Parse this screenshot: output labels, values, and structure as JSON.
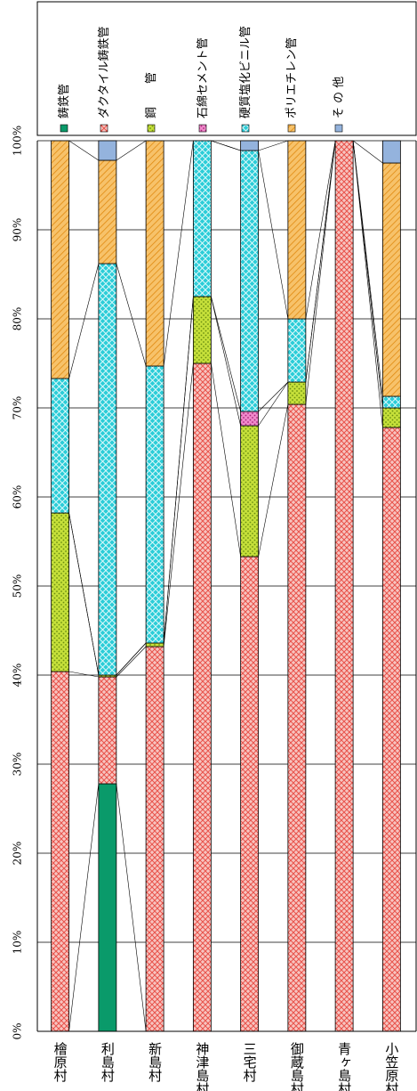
{
  "chart_data": {
    "type": "bar",
    "stacked": true,
    "orientation": "vertical",
    "categories": [
      "檜原村",
      "利島村",
      "新島村",
      "神津島村",
      "三宅村",
      "御蔵島村",
      "青ヶ島村",
      "小笠原村"
    ],
    "y_ticks": [
      "0%",
      "10%",
      "20%",
      "30%",
      "40%",
      "50%",
      "60%",
      "70%",
      "80%",
      "90%",
      "100%"
    ],
    "ylim": [
      0,
      100
    ],
    "grid": true,
    "legend_position": "top",
    "series": [
      {
        "name": "鋳鉄管",
        "color": "#0a9a6a",
        "pattern": "solid",
        "values": [
          0,
          27.8,
          0,
          0,
          0,
          0,
          0,
          0
        ]
      },
      {
        "name": "ダクタイル鋳鉄管",
        "color": "#f6a3a3",
        "pattern": "diamond",
        "values": [
          40.4,
          12.0,
          43.2,
          75.0,
          53.3,
          70.4,
          100,
          67.8
        ]
      },
      {
        "name": "鋼　　管",
        "color": "#b8d92a",
        "pattern": "dots",
        "values": [
          17.8,
          0.2,
          0.4,
          7.5,
          14.7,
          2.5,
          0,
          2.2
        ]
      },
      {
        "name": "石綿セメント管",
        "color": "#e05cb8",
        "pattern": "dots",
        "values": [
          0,
          0,
          0,
          0,
          1.6,
          0,
          0,
          0
        ]
      },
      {
        "name": "硬質塩化ビニル管",
        "color": "#22c6d2",
        "pattern": "mesh",
        "values": [
          15.1,
          46.2,
          31.1,
          17.5,
          29.3,
          7.1,
          0,
          1.3
        ]
      },
      {
        "name": "ポリエチレン管",
        "color": "#f5b040",
        "pattern": "hatch",
        "values": [
          26.7,
          11.6,
          25.3,
          0,
          0,
          20.0,
          0,
          26.2
        ]
      },
      {
        "name": "そ の 他",
        "color": "#94b3dd",
        "pattern": "solid",
        "values": [
          0,
          2.2,
          0,
          0,
          1.1,
          0,
          0,
          2.5
        ]
      }
    ]
  }
}
